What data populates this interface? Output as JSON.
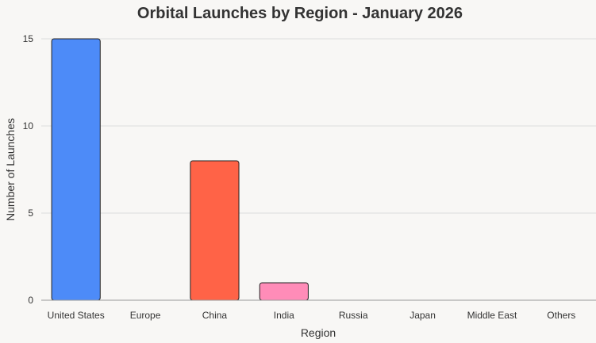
{
  "chart_data": {
    "type": "bar",
    "title": "Orbital Launches by Region - January 2026",
    "xlabel": "Region",
    "ylabel": "Number of Launches",
    "categories": [
      "United States",
      "Europe",
      "China",
      "India",
      "Russia",
      "Japan",
      "Middle East",
      "Others"
    ],
    "values": [
      15,
      0,
      8,
      1,
      0,
      0,
      0,
      0
    ],
    "colors": [
      "#4d8bf8",
      "#4d8bf8",
      "#ff6347",
      "#ff8cb8",
      "#4d8bf8",
      "#4d8bf8",
      "#4d8bf8",
      "#4d8bf8"
    ],
    "ylim": [
      0,
      15
    ],
    "yticks": [
      0,
      5,
      10,
      15
    ],
    "grid": true,
    "legend": "none"
  }
}
